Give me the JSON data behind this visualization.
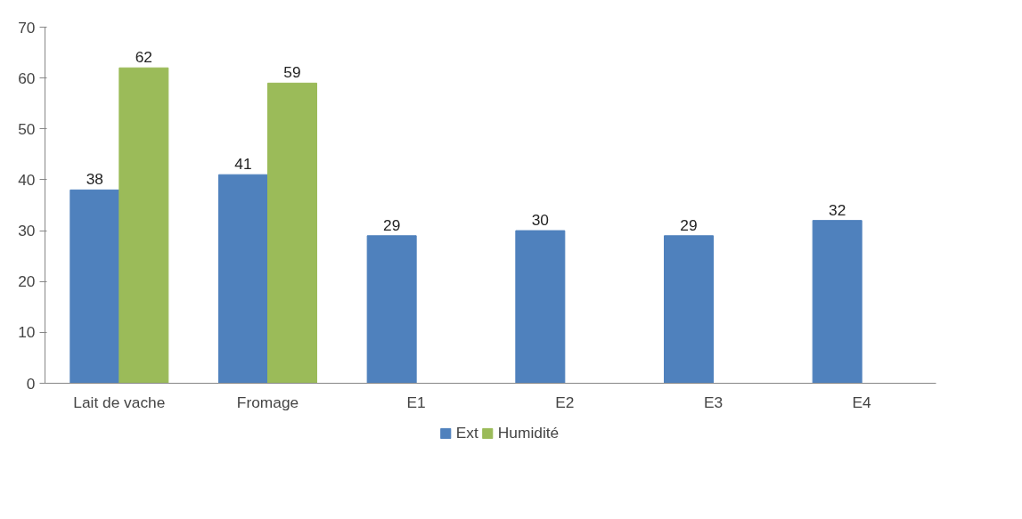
{
  "chart_data": {
    "type": "bar",
    "categories": [
      "Lait de vache",
      "Fromage",
      "E1",
      "E2",
      "E3",
      "E4"
    ],
    "series": [
      {
        "name": "Ext",
        "color": "#4f81bd",
        "values": [
          38,
          41,
          29,
          30,
          29,
          32
        ]
      },
      {
        "name": "Humidité",
        "color": "#9bbb59",
        "values": [
          62,
          59,
          null,
          null,
          null,
          null
        ]
      }
    ],
    "ylim": [
      0,
      70
    ],
    "yticks": [
      0,
      10,
      20,
      30,
      40,
      50,
      60,
      70
    ],
    "grid": false,
    "legend": "bottom",
    "data_labels": true
  }
}
